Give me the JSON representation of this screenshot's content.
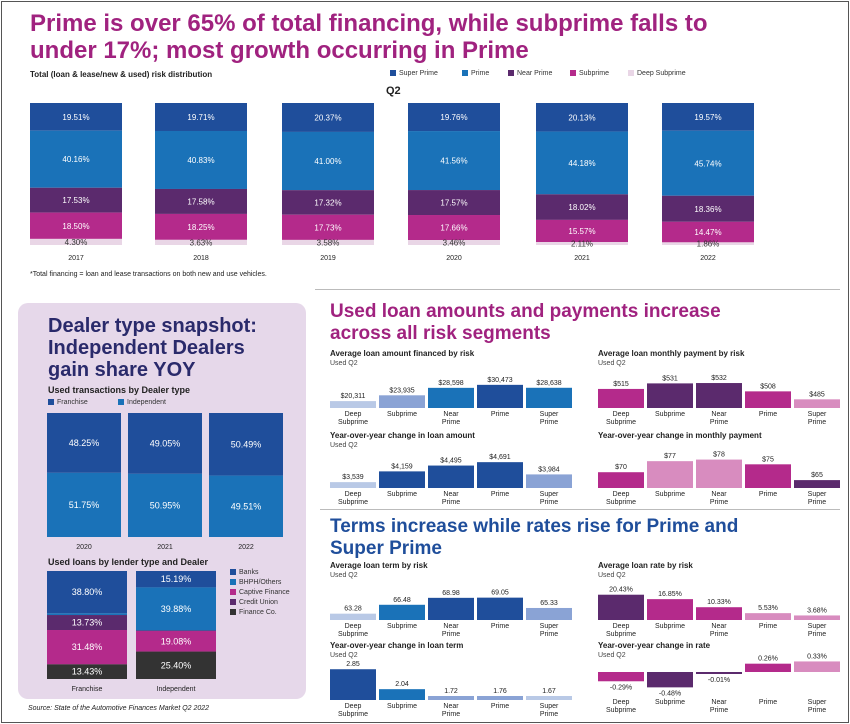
{
  "headline": "Prime is over 65% of total financing, while subprime falls to under 17%; most growth occurring in Prime",
  "headline_line1": "Prime is over 65% of total financing, while subprime falls to",
  "headline_line2": "under 17%; most growth occurring in Prime",
  "colors": {
    "super_prime": "#1f4e9b",
    "prime": "#1a72b8",
    "near_prime": "#5b2a6d",
    "subprime": "#b42a8b",
    "deep_subprime": "#e9d6e6",
    "accent": "#a0227f",
    "dealer_blue": "#1a72b8",
    "dealer_dark": "#1f4e9b",
    "finance_dark": "#333333",
    "light_blue": "#b9c9e6",
    "mid_blue": "#8aa3d5",
    "magenta_light": "#d88cbf"
  },
  "risk_chart": {
    "subtitle": "Total (loan & lease/new & used) risk distribution",
    "q_label": "Q2",
    "footnote": "*Total financing = loan and lease transactions on both new and use vehicles.",
    "legend": [
      "Super Prime",
      "Prime",
      "Near Prime",
      "Subprime",
      "Deep Subprime"
    ]
  },
  "dealer_panel": {
    "title_l1": "Dealer type snapshot:",
    "title_l2": "Independent Dealers",
    "title_l3": "gain share YOY",
    "txn_title": "Used transactions by Dealer type",
    "txn_legend": [
      "Franchise",
      "Independent"
    ],
    "lender_title": "Used loans by lender type and Dealer",
    "lender_legend": [
      "Banks",
      "BHPH/Others",
      "Captive Finance",
      "Credit Union",
      "Finance Co."
    ]
  },
  "used_loans_title_l1": "Used loan amounts and payments increase",
  "used_loans_title_l2": "across all risk segments",
  "terms_title_l1": "Terms increase while rates rise for Prime and",
  "terms_title_l2": "Super Prime",
  "source": "Source: State of the Automotive Finances Market Q2 2022",
  "chart_data": [
    {
      "type": "bar",
      "stacked": true,
      "id": "risk",
      "title": "Total (loan & lease/new & used) risk distribution",
      "categories": [
        "2017",
        "2018",
        "2019",
        "2020",
        "2021",
        "2022"
      ],
      "series": [
        {
          "name": "Super Prime",
          "values": [
            19.51,
            19.71,
            20.37,
            19.76,
            20.13,
            19.57
          ]
        },
        {
          "name": "Prime",
          "values": [
            40.16,
            40.83,
            41.0,
            41.56,
            44.18,
            45.74
          ]
        },
        {
          "name": "Near Prime",
          "values": [
            17.53,
            17.58,
            17.32,
            17.57,
            18.02,
            18.36
          ]
        },
        {
          "name": "Subprime",
          "values": [
            18.5,
            18.25,
            17.73,
            17.66,
            15.57,
            14.47
          ]
        },
        {
          "name": "Deep Subprime",
          "values": [
            4.3,
            3.63,
            3.58,
            3.46,
            2.11,
            1.86
          ]
        }
      ],
      "labels": [
        [
          "19.51%",
          "40.16%",
          "17.53%",
          "18.50%",
          "4.30%"
        ],
        [
          "19.71%",
          "40.83%",
          "17.58%",
          "18.25%",
          "3.63%"
        ],
        [
          "20.37%",
          "41.00%",
          "17.32%",
          "17.73%",
          "3.58%"
        ],
        [
          "19.76%",
          "41.56%",
          "17.57%",
          "17.66%",
          "3.46%"
        ],
        [
          "20.13%",
          "44.18%",
          "18.02%",
          "15.57%",
          "2.11%"
        ],
        [
          "19.57%",
          "45.74%",
          "18.36%",
          "14.47%",
          "1.86%"
        ]
      ]
    },
    {
      "type": "bar",
      "stacked": true,
      "id": "txn",
      "title": "Used transactions by Dealer type",
      "categories": [
        "2020",
        "2021",
        "2022"
      ],
      "series": [
        {
          "name": "Franchise",
          "values": [
            48.25,
            49.05,
            50.49
          ]
        },
        {
          "name": "Independent",
          "values": [
            51.75,
            50.95,
            49.51
          ]
        }
      ],
      "labels": [
        [
          "48.25%",
          "51.75%"
        ],
        [
          "49.05%",
          "50.95%"
        ],
        [
          "50.49%",
          "49.51%"
        ]
      ]
    },
    {
      "type": "bar",
      "stacked": true,
      "id": "lender",
      "title": "Used loans by lender type and Dealer",
      "categories": [
        "Franchise",
        "Independent"
      ],
      "series": [
        {
          "name": "Banks",
          "values": [
            38.8,
            15.19
          ]
        },
        {
          "name": "BHPH/Others",
          "values": [
            1.56,
            39.88
          ]
        },
        {
          "name": "Captive Finance",
          "values": [
            13.73,
            0.45
          ]
        },
        {
          "name": "Credit Union",
          "values": [
            31.48,
            19.08
          ]
        },
        {
          "name": "Finance Co.",
          "values": [
            13.43,
            25.4
          ]
        }
      ],
      "labels": [
        [
          "38.80%",
          "",
          "13.73%",
          "31.48%",
          "13.43%"
        ],
        [
          "15.19%",
          "39.88%",
          "",
          "19.08%",
          "25.40%"
        ]
      ]
    },
    {
      "type": "bar",
      "id": "loan_amount",
      "title": "Average loan amount financed by risk",
      "subtitle": "Used Q2",
      "categories": [
        "Deep Subprime",
        "Subprime",
        "Near Prime",
        "Prime",
        "Super Prime"
      ],
      "values": [
        20311,
        23935,
        28598,
        30473,
        28638
      ],
      "labels": [
        "$20,311",
        "$23,935",
        "$28,598",
        "$30,473",
        "$28,638"
      ]
    },
    {
      "type": "bar",
      "id": "payment",
      "title": "Average loan monthly payment by risk",
      "subtitle": "Used Q2",
      "categories": [
        "Deep Subprime",
        "Subprime",
        "Near Prime",
        "Prime",
        "Super Prime"
      ],
      "values": [
        515,
        531,
        532,
        508,
        485
      ],
      "labels": [
        "$515",
        "$531",
        "$532",
        "$508",
        "$485"
      ]
    },
    {
      "type": "bar",
      "id": "yoy_amount",
      "title": "Year-over-year change in loan amount",
      "subtitle": "Used Q2",
      "categories": [
        "Deep Subprime",
        "Subprime",
        "Near Prime",
        "Prime",
        "Super Prime"
      ],
      "values": [
        3539,
        4159,
        4495,
        4691,
        3984
      ],
      "labels": [
        "$3,539",
        "$4,159",
        "$4,495",
        "$4,691",
        "$3,984"
      ]
    },
    {
      "type": "bar",
      "id": "yoy_payment",
      "title": "Year-over-year change in monthly payment",
      "categories": [
        "Deep Subprime",
        "Subprime",
        "Near Prime",
        "Prime",
        "Super Prime"
      ],
      "values": [
        70,
        77,
        78,
        75,
        65
      ],
      "labels": [
        "$70",
        "$77",
        "$78",
        "$75",
        "$65"
      ]
    },
    {
      "type": "bar",
      "id": "term",
      "title": "Average loan term by risk",
      "subtitle": "Used Q2",
      "categories": [
        "Deep Subprime",
        "Subprime",
        "Near Prime",
        "Prime",
        "Super Prime"
      ],
      "values": [
        63.28,
        66.48,
        68.98,
        69.05,
        65.33
      ],
      "labels": [
        "63.28",
        "66.48",
        "68.98",
        "69.05",
        "65.33"
      ]
    },
    {
      "type": "bar",
      "id": "rate",
      "title": "Average loan rate by risk",
      "subtitle": "Used Q2",
      "categories": [
        "Deep Subprime",
        "Subprime",
        "Near Prime",
        "Prime",
        "Super Prime"
      ],
      "values": [
        20.43,
        16.85,
        10.33,
        5.53,
        3.68
      ],
      "labels": [
        "20.43%",
        "16.85%",
        "10.33%",
        "5.53%",
        "3.68%"
      ]
    },
    {
      "type": "bar",
      "id": "yoy_term",
      "title": "Year-over-year change in loan term",
      "subtitle": "Used Q2",
      "categories": [
        "Deep Subprime",
        "Subprime",
        "Near Prime",
        "Prime",
        "Super Prime"
      ],
      "values": [
        2.85,
        2.04,
        1.72,
        1.76,
        1.67
      ],
      "labels": [
        "2.85",
        "2.04",
        "1.72",
        "1.76",
        "1.67"
      ]
    },
    {
      "type": "bar",
      "id": "yoy_rate",
      "title": "Year-over-year change in rate",
      "subtitle": "Used Q2",
      "categories": [
        "Deep Subprime",
        "Subprime",
        "Near Prime",
        "Prime",
        "Super Prime"
      ],
      "values": [
        -0.29,
        -0.48,
        -0.01,
        0.26,
        0.33
      ],
      "labels": [
        "-0.29%",
        "-0.48%",
        "-0.01%",
        "0.26%",
        "0.33%"
      ]
    }
  ]
}
